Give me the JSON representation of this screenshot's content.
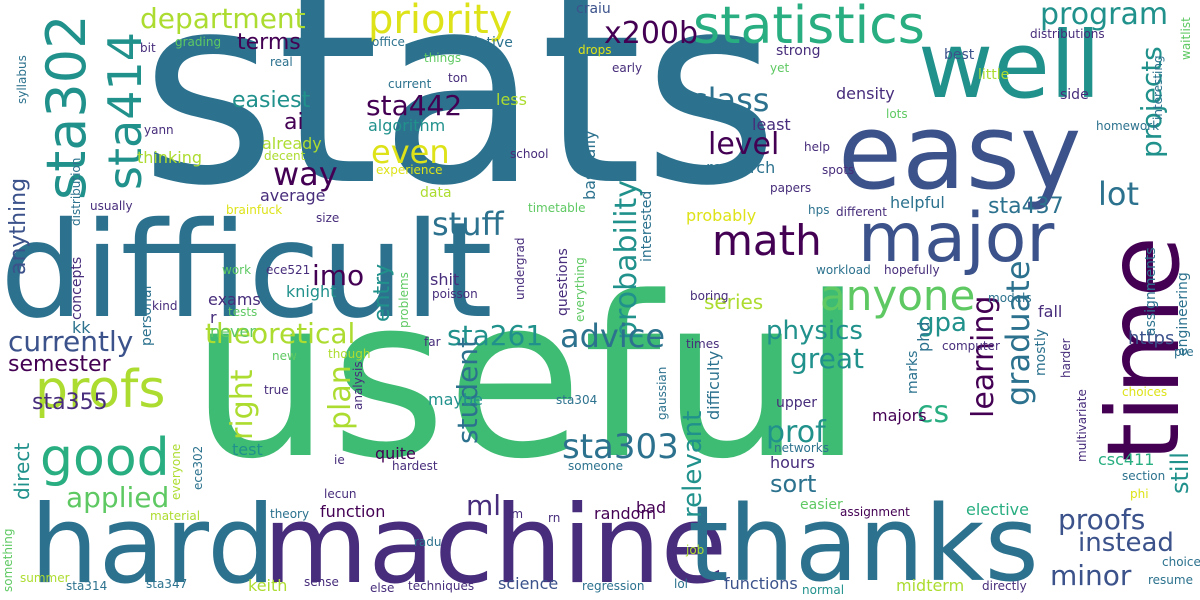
{
  "palette": {
    "purple": "#440154",
    "indigo": "#472d7b",
    "blue": "#3b528b",
    "steel": "#2c728e",
    "teal": "#21918c",
    "green": "#28ae80",
    "lime": "#5ec962",
    "yellowgreen": "#addc30",
    "yellow": "#dde318"
  },
  "words": {
    "stats": "stats",
    "useful": "useful",
    "difficult": "difficult",
    "hard": "hard",
    "machine": "machine",
    "thanks": "thanks",
    "easy": "easy",
    "well": "well",
    "time": "time",
    "major": "major",
    "statistics": "statistics",
    "sta302": "sta302",
    "sta414": "sta414",
    "profs": "profs",
    "good": "good",
    "math": "math",
    "anyone": "anyone",
    "priority": "priority",
    "department": "department",
    "program": "program",
    "projects": "projects",
    "x200b": "x200b",
    "sta442": "sta442",
    "class": "class",
    "level": "level",
    "way": "way",
    "even": "even",
    "easiest": "easiest",
    "terms": "terms",
    "ai": "ai",
    "stuff": "stuff",
    "imo": "imo",
    "probability": "probability",
    "lot": "lot",
    "sta437": "sta437",
    "advice": "advice",
    "sta261": "sta261",
    "theoretical": "theoretical",
    "currently": "currently",
    "semester": "semester",
    "sta355": "sta355",
    "applied": "applied",
    "anything": "anything",
    "right": "right",
    "plan": "plan",
    "student": "student",
    "sta303": "sta303",
    "physics": "physics",
    "gpa": "gpa",
    "learning": "learning",
    "graduate": "graduate",
    "great": "great",
    "prof": "prof",
    "cs": "cs",
    "sort": "sort",
    "relevant": "relevant",
    "ml": "ml",
    "proofs": "proofs",
    "instead": "instead",
    "minor": "minor",
    "https": "https",
    "still": "still",
    "entry": "entry",
    "series": "series",
    "direct": "direct",
    "quite": "quite",
    "maybe": "maybe",
    "test": "test",
    "function": "function",
    "random": "random",
    "bad": "bad",
    "hours": "hours",
    "majors": "majors",
    "elective": "elective",
    "csc411": "csc411",
    "keith": "keith",
    "science": "science",
    "functions": "functions",
    "midterm": "midterm",
    "lol": "lol",
    "assignment": "assignment",
    "material": "material",
    "summer": "summer",
    "sta314": "sta314",
    "sta347": "sta347",
    "fall": "fall",
    "helpful": "helpful",
    "probably": "probably",
    "density": "density",
    "research": "research",
    "help": "help",
    "least": "least",
    "average": "average",
    "algorithm": "algorithm",
    "less": "less",
    "relative": "relative",
    "office": "office",
    "craiu": "craiu",
    "strong": "strong",
    "best": "best",
    "little": "little",
    "side": "side",
    "distributions": "distributions",
    "yet": "yet",
    "early": "early",
    "drops": "drops",
    "things": "things",
    "current": "current",
    "ton": "ton",
    "bit": "bit",
    "grading": "grading",
    "real": "real",
    "syllabus": "syllabus",
    "yann": "yann",
    "thinking": "thinking",
    "already": "already",
    "decent": "decent",
    "experience": "experience",
    "data": "data",
    "school": "school",
    "spots": "spots",
    "papers": "papers",
    "homework": "homework",
    "interesting": "interesting",
    "waitlist": "waitlist",
    "lots": "lots",
    "usually": "usually",
    "distribution": "distribution",
    "brainfuck": "brainfuck",
    "timetable": "timetable",
    "hps": "hps",
    "different": "different",
    "interested": "interested",
    "basically": "basically",
    "size": "size",
    "work": "work",
    "ece521": "ece521",
    "concepts": "concepts",
    "personal": "personal",
    "kind": "kind",
    "exams": "exams",
    "r": "r",
    "tests": "tests",
    "knight": "knight",
    "never": "never",
    "kk": "kk",
    "problems": "problems",
    "shit": "shit",
    "poisson": "poisson",
    "undergrad": "undergrad",
    "questions": "questions",
    "everything": "everything",
    "workload": "workload",
    "hopefully": "hopefully",
    "models": "models",
    "boring": "boring",
    "engineering": "engineering",
    "assignments": "assignments",
    "far": "far",
    "times": "times",
    "computer": "computer",
    "phd": "phd",
    "marks": "marks",
    "mostly": "mostly",
    "harder": "harder",
    "multivariate": "multivariate",
    "pre": "pre",
    "new": "new",
    "though": "though",
    "true": "true",
    "analysis": "analysis",
    "sta304": "sta304",
    "gaussian": "gaussian",
    "difficulty": "difficulty",
    "upper": "upper",
    "networks": "networks",
    "ie": "ie",
    "hardest": "hardest",
    "someone": "someone",
    "ece302": "ece302",
    "everyone": "everyone",
    "choices": "choices",
    "section": "section",
    "phi": "phi",
    "choice": "choice",
    "resume": "resume",
    "lecun": "lecun",
    "theory": "theory",
    "radu": "radu",
    "im": "im",
    "rn": "rn",
    "job": "job",
    "easier": "easier",
    "regression": "regression",
    "normal": "normal",
    "techniques": "techniques",
    "else": "else",
    "sense": "sense",
    "directly": "directly",
    "something": "something"
  }
}
